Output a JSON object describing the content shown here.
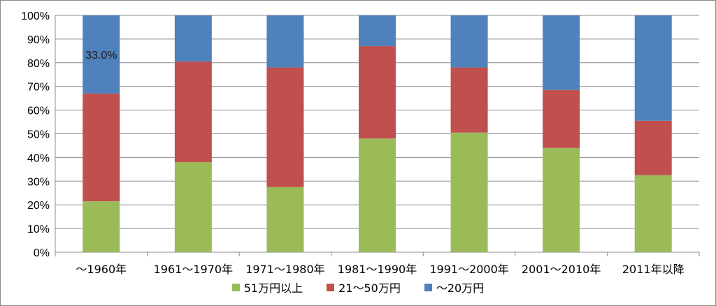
{
  "chart_data": {
    "type": "bar",
    "stacked": true,
    "percent_stacked": true,
    "categories": [
      "～1960年",
      "1961～1970年",
      "1971～1980年",
      "1981～1990年",
      "1991～2000年",
      "2001～2010年",
      "2011年以降"
    ],
    "series": [
      {
        "name": "51万円以上",
        "color": "#9bbb59",
        "values": [
          21.5,
          38.0,
          27.5,
          48.0,
          50.5,
          44.0,
          32.5
        ]
      },
      {
        "name": "21～50万円",
        "color": "#c0504d",
        "values": [
          45.5,
          42.5,
          50.5,
          39.0,
          27.5,
          24.5,
          23.0
        ]
      },
      {
        "name": "～20万円",
        "color": "#4f81bd",
        "values": [
          33.0,
          19.5,
          22.0,
          13.0,
          22.0,
          31.5,
          44.5
        ]
      }
    ],
    "data_labels": [
      {
        "category": "～1960年",
        "series": "～20万円",
        "text": "33.0%"
      }
    ],
    "yticks": [
      "0%",
      "10%",
      "20%",
      "30%",
      "40%",
      "50%",
      "60%",
      "70%",
      "80%",
      "90%",
      "100%"
    ],
    "ylim": [
      0,
      100
    ],
    "grid": true,
    "legend_position": "bottom",
    "title": "",
    "xlabel": "",
    "ylabel": ""
  }
}
